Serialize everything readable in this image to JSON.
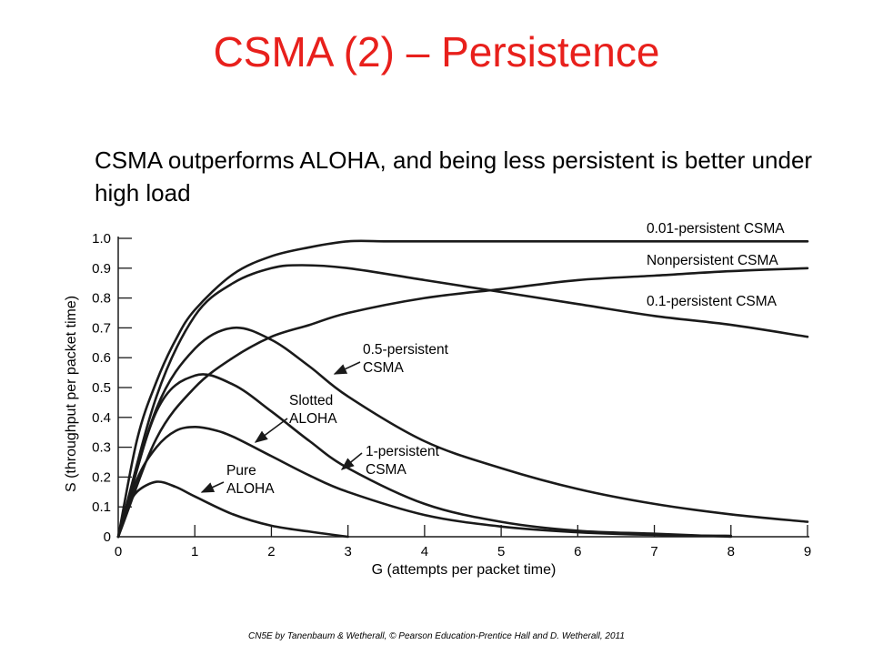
{
  "slide": {
    "title": "CSMA (2) – Persistence",
    "subtitle": "CSMA outperforms ALOHA, and being less persistent is better under high load",
    "footer": "CN5E by Tanenbaum & Wetherall, © Pearson Education-Prentice Hall and D. Wetherall, 2011"
  },
  "chart_data": {
    "type": "line",
    "xlabel": "G (attempts per packet time)",
    "ylabel": "S (throughput per packet time)",
    "xlim": [
      0,
      9
    ],
    "ylim": [
      0,
      1.0
    ],
    "xticks": [
      0,
      1,
      2,
      3,
      4,
      5,
      6,
      7,
      8,
      9
    ],
    "yticks": [
      0,
      0.1,
      0.2,
      0.3,
      0.4,
      0.5,
      0.6,
      0.7,
      0.8,
      0.9,
      1.0
    ],
    "ytick_labels": [
      "0",
      "0.1",
      "0.2",
      "0.3",
      "0.4",
      "0.5",
      "0.6",
      "0.7",
      "0.8",
      "0.9",
      "1.0"
    ],
    "grid": false,
    "line_color": "#1a1a1a",
    "series": [
      {
        "label": "0.01-persistent CSMA",
        "x": [
          0,
          0.25,
          0.5,
          0.75,
          1.0,
          1.5,
          2.0,
          2.5,
          3.0,
          3.5,
          4.0,
          5.0,
          6.0,
          7.0,
          8.0,
          9.0
        ],
        "y": [
          0,
          0.33,
          0.52,
          0.66,
          0.76,
          0.88,
          0.94,
          0.97,
          0.99,
          0.99,
          0.99,
          0.99,
          0.99,
          0.99,
          0.99,
          0.99
        ]
      },
      {
        "label": "Nonpersistent CSMA",
        "x": [
          0,
          0.5,
          1.0,
          1.5,
          2.0,
          2.5,
          3.0,
          4.0,
          5.0,
          6.0,
          7.0,
          8.0,
          9.0
        ],
        "y": [
          0,
          0.33,
          0.5,
          0.6,
          0.67,
          0.71,
          0.75,
          0.8,
          0.83,
          0.86,
          0.875,
          0.89,
          0.9
        ]
      },
      {
        "label": "0.1-persistent CSMA",
        "x": [
          0,
          0.5,
          1.0,
          1.5,
          2.0,
          2.4,
          3.0,
          4.0,
          5.0,
          6.0,
          7.0,
          8.0,
          9.0
        ],
        "y": [
          0,
          0.47,
          0.74,
          0.85,
          0.9,
          0.91,
          0.9,
          0.86,
          0.82,
          0.78,
          0.74,
          0.71,
          0.67
        ]
      },
      {
        "label": "0.5-persistent CSMA",
        "x": [
          0,
          0.5,
          1.0,
          1.5,
          2.0,
          2.5,
          3.0,
          4.0,
          5.0,
          6.0,
          7.0,
          8.0,
          9.0
        ],
        "y": [
          0,
          0.43,
          0.63,
          0.7,
          0.66,
          0.57,
          0.47,
          0.32,
          0.23,
          0.16,
          0.11,
          0.075,
          0.05
        ]
      },
      {
        "label": "1-persistent CSMA",
        "x": [
          0,
          0.5,
          1.0,
          1.5,
          2.0,
          2.5,
          3.0,
          4.0,
          5.0,
          6.0,
          7.0,
          8.0
        ],
        "y": [
          0,
          0.42,
          0.54,
          0.51,
          0.42,
          0.32,
          0.23,
          0.11,
          0.05,
          0.02,
          0.01,
          0.0
        ]
      },
      {
        "label": "Slotted ALOHA",
        "x": [
          0,
          0.25,
          0.5,
          0.75,
          1.0,
          1.25,
          1.5,
          2.0,
          2.5,
          3.0,
          4.0,
          5.0,
          6.0,
          7.0,
          8.0
        ],
        "y": [
          0,
          0.195,
          0.3,
          0.355,
          0.368,
          0.358,
          0.335,
          0.27,
          0.205,
          0.15,
          0.073,
          0.034,
          0.015,
          0.006,
          0.003
        ]
      },
      {
        "label": "Pure ALOHA",
        "x": [
          0,
          0.125,
          0.25,
          0.5,
          0.75,
          1.0,
          1.5,
          2.0,
          2.5,
          3.0
        ],
        "y": [
          0,
          0.097,
          0.152,
          0.184,
          0.167,
          0.135,
          0.075,
          0.037,
          0.017,
          0.0
        ]
      }
    ],
    "annotations": [
      {
        "lines": [
          "0.01-persistent CSMA"
        ]
      },
      {
        "lines": [
          "Nonpersistent CSMA"
        ]
      },
      {
        "lines": [
          "0.1-persistent CSMA"
        ]
      },
      {
        "lines": [
          "0.5-persistent",
          "CSMA"
        ]
      },
      {
        "lines": [
          "Slotted",
          "ALOHA"
        ]
      },
      {
        "lines": [
          "1-persistent",
          "CSMA"
        ]
      },
      {
        "lines": [
          "Pure",
          "ALOHA"
        ]
      }
    ]
  }
}
